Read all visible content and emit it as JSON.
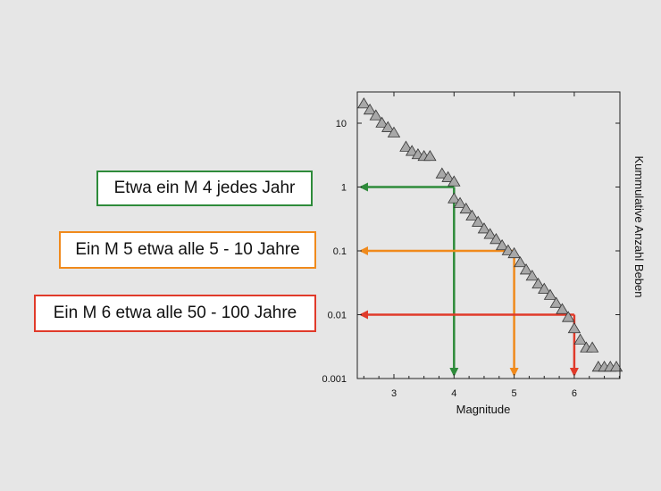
{
  "callouts": [
    {
      "text": "Etwa ein M 4 jedes Jahr",
      "color": "#2e8b3a"
    },
    {
      "text": "Ein M 5 etwa alle 5 - 10 Jahre",
      "color": "#f08a1c"
    },
    {
      "text": "Ein M 6 etwa alle 50 - 100 Jahre",
      "color": "#e03a2a"
    }
  ],
  "chart_data": {
    "type": "scatter",
    "title": "",
    "xlabel": "Magnitude",
    "ylabel": "Kummulative Anzahl Beben",
    "xlim": [
      2.5,
      6.75
    ],
    "ylim": [
      0.001,
      30
    ],
    "y_scale": "log",
    "x_ticks": [
      3,
      4,
      5,
      6
    ],
    "y_ticks": [
      {
        "value": 0.001,
        "label": "0.001"
      },
      {
        "value": 0.01,
        "label": "0.01"
      },
      {
        "value": 0.1,
        "label": "0.1"
      },
      {
        "value": 1,
        "label": "1"
      },
      {
        "value": 10,
        "label": "10"
      }
    ],
    "marker": "triangle",
    "marker_color": "#a8a8a8",
    "series": [
      {
        "x": [
          2.5,
          2.6,
          2.7,
          2.8,
          2.9,
          3.0,
          3.2,
          3.3,
          3.4,
          3.5,
          3.6,
          3.8,
          3.9,
          4.0,
          4.0,
          4.1,
          4.2,
          4.3,
          4.4,
          4.5,
          4.6,
          4.7,
          4.8,
          4.9,
          5.0,
          5.1,
          5.2,
          5.3,
          5.4,
          5.5,
          5.6,
          5.7,
          5.8,
          5.9,
          6.0,
          6.1,
          6.2,
          6.3,
          6.4,
          6.5,
          6.6,
          6.7
        ],
        "y": [
          20,
          16,
          13,
          10,
          8.5,
          7,
          4.2,
          3.6,
          3.2,
          3.0,
          3.0,
          1.6,
          1.4,
          1.2,
          0.65,
          0.55,
          0.45,
          0.35,
          0.28,
          0.22,
          0.18,
          0.15,
          0.12,
          0.1,
          0.09,
          0.065,
          0.05,
          0.04,
          0.03,
          0.025,
          0.02,
          0.015,
          0.012,
          0.009,
          0.006,
          0.004,
          0.003,
          0.003,
          0.0015,
          0.0015,
          0.0015,
          0.0015
        ]
      }
    ],
    "annotations": [
      {
        "magnitude": 4,
        "rate": 1,
        "color": "#2e8b3a"
      },
      {
        "magnitude": 5,
        "rate": 0.1,
        "color": "#f08a1c"
      },
      {
        "magnitude": 6,
        "rate": 0.01,
        "color": "#e03a2a"
      }
    ]
  }
}
